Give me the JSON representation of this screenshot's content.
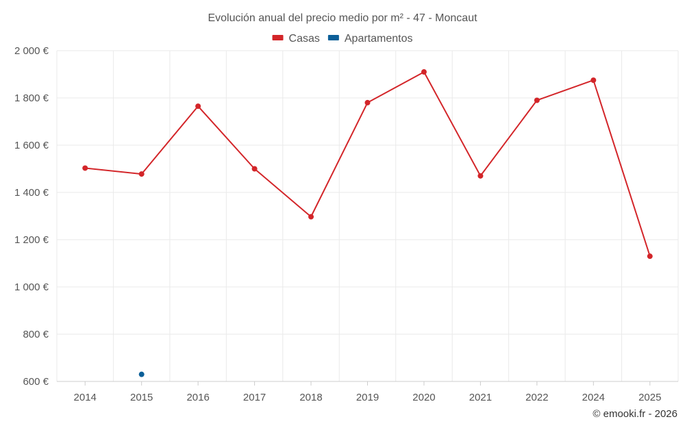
{
  "chart_data": {
    "type": "line",
    "title": "Evolución anual del precio medio por m² - 47 - Moncaut",
    "categories": [
      "2014",
      "2015",
      "2016",
      "2017",
      "2018",
      "2019",
      "2020",
      "2021",
      "2022",
      "2024",
      "2025"
    ],
    "series": [
      {
        "name": "Casas",
        "color": "#d32529",
        "values": [
          1503,
          1478,
          1765,
          1500,
          1297,
          1780,
          1910,
          1470,
          1790,
          1875,
          1130
        ]
      },
      {
        "name": "Apartamentos",
        "color": "#0b5f98",
        "values": [
          null,
          630,
          null,
          null,
          null,
          null,
          null,
          null,
          null,
          null,
          null
        ]
      }
    ],
    "ylim": [
      600,
      2000
    ],
    "yticks": [
      600,
      800,
      1000,
      1200,
      1400,
      1600,
      1800,
      2000
    ],
    "ytick_labels": [
      "600 €",
      "800 €",
      "1 000 €",
      "1 200 €",
      "1 400 €",
      "1 600 €",
      "1 800 €",
      "2 000 €"
    ],
    "legend_position": "top-center",
    "grid": true,
    "xlabel": "",
    "ylabel": ""
  },
  "credit": "© emooki.fr - 2026"
}
